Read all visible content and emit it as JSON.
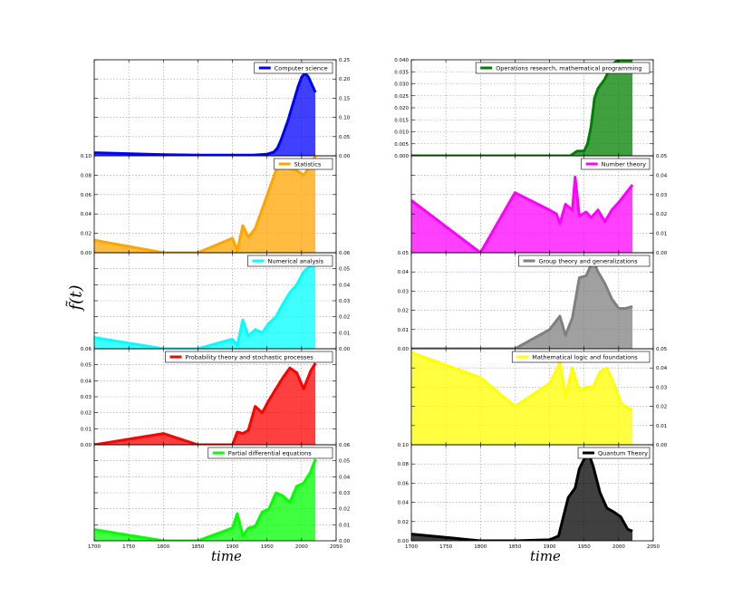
{
  "figure": {
    "ylabel": "f̃(t)",
    "xlabel_left": "time",
    "xlabel_right": "time"
  },
  "chart_data": [
    {
      "type": "area",
      "column": "left",
      "label": "Computer science",
      "color": "#0000ff",
      "xlim": [
        1700,
        2050
      ],
      "ylim": [
        0,
        0.25
      ],
      "yticks": [
        0.0,
        0.05,
        0.1,
        0.15,
        0.2,
        0.25
      ],
      "ytick_labels": [
        "0.00",
        "0.05",
        "0.10",
        "0.15",
        "0.20",
        "0.25"
      ],
      "yaxis_side": "right",
      "show_xticks": false,
      "x": [
        1700,
        1800,
        1850,
        1900,
        1920,
        1930,
        1940,
        1950,
        1960,
        1965,
        1970,
        1975,
        1980,
        1985,
        1990,
        1995,
        2000,
        2005,
        2010,
        2020
      ],
      "y": [
        0.008,
        0.003,
        0.002,
        0.002,
        0.002,
        0.002,
        0.003,
        0.004,
        0.01,
        0.02,
        0.04,
        0.065,
        0.09,
        0.12,
        0.15,
        0.18,
        0.205,
        0.215,
        0.205,
        0.165
      ]
    },
    {
      "type": "area",
      "column": "left",
      "label": "Statistics",
      "color": "#ffa500",
      "xlim": [
        1700,
        2050
      ],
      "ylim": [
        0,
        0.1
      ],
      "yticks": [
        0.0,
        0.02,
        0.04,
        0.06,
        0.08,
        0.1
      ],
      "ytick_labels": [
        "0.00",
        "0.02",
        "0.04",
        "0.06",
        "0.08",
        "0.10"
      ],
      "yaxis_side": "left",
      "show_xticks": false,
      "x": [
        1700,
        1800,
        1850,
        1900,
        1907,
        1915,
        1923,
        1933,
        1943,
        1953,
        1963,
        1973,
        1983,
        1993,
        2003,
        2013,
        2020
      ],
      "y": [
        0.013,
        0.0,
        0.0,
        0.015,
        0.002,
        0.028,
        0.016,
        0.025,
        0.045,
        0.065,
        0.085,
        0.095,
        0.087,
        0.085,
        0.08,
        0.09,
        0.1
      ]
    },
    {
      "type": "area",
      "column": "left",
      "label": "Numerical analysis",
      "color": "#00ffff",
      "xlim": [
        1700,
        2050
      ],
      "ylim": [
        0,
        0.06
      ],
      "yticks": [
        0.0,
        0.01,
        0.02,
        0.03,
        0.04,
        0.05,
        0.06
      ],
      "ytick_labels": [
        "0.00",
        "0.01",
        "0.02",
        "0.03",
        "0.04",
        "0.05",
        "0.06"
      ],
      "yaxis_side": "right",
      "show_xticks": false,
      "x": [
        1700,
        1800,
        1850,
        1900,
        1907,
        1915,
        1923,
        1933,
        1943,
        1953,
        1963,
        1973,
        1983,
        1993,
        2003,
        2013,
        2020
      ],
      "y": [
        0.007,
        0.0,
        0.0,
        0.006,
        0.002,
        0.018,
        0.008,
        0.012,
        0.01,
        0.016,
        0.02,
        0.028,
        0.035,
        0.04,
        0.048,
        0.052,
        0.056
      ]
    },
    {
      "type": "area",
      "column": "left",
      "label": "Probability theory and stochastic processes",
      "color": "#ff0000",
      "xlim": [
        1700,
        2050
      ],
      "ylim": [
        0,
        0.06
      ],
      "yticks": [
        0.0,
        0.01,
        0.02,
        0.03,
        0.04,
        0.05,
        0.06
      ],
      "ytick_labels": [
        "0.00",
        "0.01",
        "0.02",
        "0.03",
        "0.04",
        "0.05",
        "0.06"
      ],
      "yaxis_side": "left",
      "show_xticks": false,
      "x": [
        1700,
        1800,
        1850,
        1900,
        1907,
        1915,
        1923,
        1933,
        1943,
        1953,
        1963,
        1973,
        1983,
        1993,
        2003,
        2013,
        2020
      ],
      "y": [
        0.0,
        0.007,
        0.0,
        0.0,
        0.008,
        0.007,
        0.009,
        0.024,
        0.02,
        0.028,
        0.035,
        0.042,
        0.048,
        0.045,
        0.035,
        0.046,
        0.051
      ]
    },
    {
      "type": "area",
      "column": "left",
      "label": "Partial differential equations",
      "color": "#00ff00",
      "xlim": [
        1700,
        2050
      ],
      "ylim": [
        0,
        0.06
      ],
      "yticks": [
        0.0,
        0.01,
        0.02,
        0.03,
        0.04,
        0.05,
        0.06
      ],
      "ytick_labels": [
        "0.00",
        "0.01",
        "0.02",
        "0.03",
        "0.04",
        "0.05",
        "0.06"
      ],
      "yaxis_side": "right",
      "show_xticks": true,
      "xticks": [
        1700,
        1750,
        1800,
        1850,
        1900,
        1950,
        2000,
        2050
      ],
      "xtick_labels": [
        "1700",
        "1750",
        "1800",
        "1850",
        "1900",
        "1950",
        "2000",
        "2050"
      ],
      "x": [
        1700,
        1800,
        1850,
        1900,
        1907,
        1915,
        1923,
        1933,
        1943,
        1953,
        1963,
        1973,
        1983,
        1993,
        2003,
        2013,
        2020
      ],
      "y": [
        0.007,
        0.0,
        0.0,
        0.008,
        0.017,
        0.003,
        0.008,
        0.009,
        0.018,
        0.02,
        0.03,
        0.028,
        0.024,
        0.034,
        0.036,
        0.043,
        0.051
      ]
    },
    {
      "type": "area",
      "column": "right",
      "label": "Operations research, mathematical programming",
      "color": "#008000",
      "xlim": [
        1700,
        2050
      ],
      "ylim": [
        0,
        0.04
      ],
      "yticks": [
        0.0,
        0.005,
        0.01,
        0.015,
        0.02,
        0.025,
        0.03,
        0.035,
        0.04
      ],
      "ytick_labels": [
        "0.000",
        "0.005",
        "0.010",
        "0.015",
        "0.020",
        "0.025",
        "0.030",
        "0.035",
        "0.040"
      ],
      "yaxis_side": "left",
      "show_xticks": false,
      "x": [
        1700,
        1800,
        1850,
        1900,
        1920,
        1930,
        1940,
        1950,
        1955,
        1960,
        1965,
        1970,
        1980,
        1990,
        2000,
        2020
      ],
      "y": [
        0.0,
        0.0,
        0.0,
        0.0,
        0.0,
        0.0,
        0.002,
        0.002,
        0.005,
        0.012,
        0.024,
        0.028,
        0.032,
        0.038,
        0.04,
        0.04
      ]
    },
    {
      "type": "area",
      "column": "right",
      "label": "Number theory",
      "color": "#ff00ff",
      "xlim": [
        1700,
        2050
      ],
      "ylim": [
        0,
        0.05
      ],
      "yticks": [
        0.0,
        0.01,
        0.02,
        0.03,
        0.04,
        0.05
      ],
      "ytick_labels": [
        "0.00",
        "0.01",
        "0.02",
        "0.03",
        "0.04",
        "0.05"
      ],
      "yaxis_side": "right",
      "show_xticks": false,
      "x": [
        1700,
        1800,
        1850,
        1900,
        1910,
        1915,
        1923,
        1933,
        1937,
        1943,
        1953,
        1960,
        1970,
        1980,
        1990,
        2000,
        2020
      ],
      "y": [
        0.027,
        0.0,
        0.031,
        0.022,
        0.02,
        0.015,
        0.025,
        0.022,
        0.039,
        0.019,
        0.021,
        0.018,
        0.022,
        0.016,
        0.022,
        0.026,
        0.035
      ]
    },
    {
      "type": "area",
      "column": "right",
      "label": "Group theory and generalizations",
      "color": "#808080",
      "xlim": [
        1700,
        2050
      ],
      "ylim": [
        0,
        0.05
      ],
      "yticks": [
        0.0,
        0.01,
        0.02,
        0.03,
        0.04,
        0.05
      ],
      "ytick_labels": [
        "0.00",
        "0.01",
        "0.02",
        "0.03",
        "0.04",
        "0.05"
      ],
      "yaxis_side": "left",
      "show_xticks": false,
      "x": [
        1700,
        1800,
        1850,
        1900,
        1915,
        1923,
        1933,
        1943,
        1953,
        1963,
        1970,
        1980,
        1990,
        2000,
        2010,
        2020
      ],
      "y": [
        0.0,
        0.0,
        0.0,
        0.01,
        0.017,
        0.007,
        0.016,
        0.037,
        0.038,
        0.046,
        0.04,
        0.034,
        0.026,
        0.021,
        0.021,
        0.022
      ]
    },
    {
      "type": "area",
      "column": "right",
      "label": "Mathematical logic and foundations",
      "color": "#ffff00",
      "xlim": [
        1700,
        2050
      ],
      "ylim": [
        0,
        0.05
      ],
      "yticks": [
        0.0,
        0.01,
        0.02,
        0.03,
        0.04,
        0.05
      ],
      "ytick_labels": [
        "0.00",
        "0.01",
        "0.02",
        "0.03",
        "0.04",
        "0.05"
      ],
      "yaxis_side": "right",
      "show_xticks": false,
      "x": [
        1700,
        1800,
        1850,
        1900,
        1910,
        1915,
        1923,
        1933,
        1943,
        1953,
        1963,
        1973,
        1983,
        1993,
        2003,
        2013,
        2020
      ],
      "y": [
        0.048,
        0.035,
        0.02,
        0.032,
        0.039,
        0.043,
        0.025,
        0.04,
        0.028,
        0.03,
        0.03,
        0.038,
        0.04,
        0.032,
        0.022,
        0.019,
        0.018
      ]
    },
    {
      "type": "area",
      "column": "right",
      "label": "Quantum Theory",
      "color": "#000000",
      "xlim": [
        1700,
        2050
      ],
      "ylim": [
        0,
        0.1
      ],
      "yticks": [
        0.0,
        0.02,
        0.04,
        0.06,
        0.08,
        0.1
      ],
      "ytick_labels": [
        "0.00",
        "0.02",
        "0.04",
        "0.06",
        "0.08",
        "0.10"
      ],
      "yaxis_side": "left",
      "show_xticks": true,
      "xticks": [
        1700,
        1750,
        1800,
        1850,
        1900,
        1950,
        2000,
        2050
      ],
      "xtick_labels": [
        "1700",
        "1750",
        "1800",
        "1850",
        "1900",
        "1950",
        "2000",
        "2050"
      ],
      "x": [
        1700,
        1800,
        1850,
        1900,
        1913,
        1920,
        1927,
        1937,
        1943,
        1950,
        1957,
        1963,
        1973,
        1983,
        1993,
        2003,
        2013,
        2020
      ],
      "y": [
        0.007,
        0.0,
        0.0,
        0.001,
        0.005,
        0.025,
        0.045,
        0.055,
        0.075,
        0.085,
        0.09,
        0.078,
        0.05,
        0.034,
        0.03,
        0.025,
        0.012,
        0.01
      ]
    }
  ]
}
